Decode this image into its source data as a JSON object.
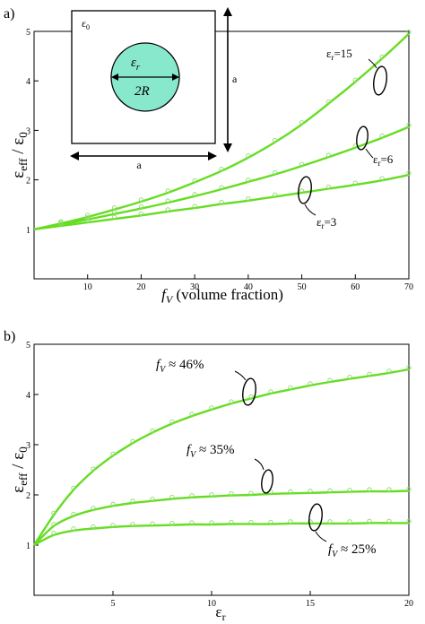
{
  "colors": {
    "curve": "#66dd22",
    "marker": "#88dd66",
    "circle_fill": "#88e8cc"
  },
  "chart_data": [
    {
      "type": "line",
      "panel_label": "a)",
      "xlabel": "f_V (volume fraction)",
      "xlabel_var": "f",
      "xlabel_sub": "V",
      "xlabel_rest": " (volume fraction)",
      "ylabel": "εeff / ε0",
      "xlim": [
        0,
        70
      ],
      "ylim": [
        0,
        5
      ],
      "xticks": [
        10,
        20,
        30,
        40,
        50,
        60,
        70
      ],
      "yticks": [
        1,
        2,
        3,
        4,
        5
      ],
      "grid": false,
      "series": [
        {
          "name": "εr=15",
          "x": [
            0,
            5,
            10,
            15,
            20,
            25,
            30,
            35,
            40,
            45,
            50,
            55,
            60,
            65,
            70
          ],
          "y": [
            1.0,
            1.12,
            1.25,
            1.4,
            1.56,
            1.74,
            1.95,
            2.18,
            2.45,
            2.76,
            3.12,
            3.54,
            3.98,
            4.45,
            4.95
          ]
        },
        {
          "name": "εr=6",
          "x": [
            0,
            5,
            10,
            15,
            20,
            25,
            30,
            35,
            40,
            45,
            50,
            55,
            60,
            65,
            70
          ],
          "y": [
            1.0,
            1.1,
            1.2,
            1.31,
            1.42,
            1.54,
            1.67,
            1.81,
            1.96,
            2.11,
            2.28,
            2.46,
            2.65,
            2.85,
            3.07
          ]
        },
        {
          "name": "εr=3",
          "x": [
            0,
            5,
            10,
            15,
            20,
            25,
            30,
            35,
            40,
            45,
            50,
            55,
            60,
            65,
            70
          ],
          "y": [
            1.0,
            1.07,
            1.14,
            1.21,
            1.28,
            1.36,
            1.43,
            1.51,
            1.58,
            1.66,
            1.74,
            1.82,
            1.9,
            1.99,
            2.1
          ]
        }
      ],
      "annotations": {
        "er15": {
          "base": "ε",
          "sub": "r",
          "rest": "=15"
        },
        "er6": {
          "base": "ε",
          "sub": "r",
          "rest": "=6"
        },
        "er3": {
          "base": "ε",
          "sub": "r",
          "rest": "=3"
        }
      },
      "inset": {
        "eps0_base": "ε",
        "eps0_sub": "0",
        "epsr_base": "ε",
        "epsr_sub": "r",
        "diameter": "2R",
        "side_label_right": "a",
        "side_label_bottom": "a"
      }
    },
    {
      "type": "line",
      "panel_label": "b)",
      "xlabel": "εr",
      "xlabel_base": "ε",
      "xlabel_sub": "r",
      "ylabel": "εeff / ε0",
      "xlim": [
        1,
        20
      ],
      "ylim": [
        0,
        5
      ],
      "xticks": [
        5,
        10,
        15,
        20
      ],
      "yticks": [
        1,
        2,
        3,
        4,
        5
      ],
      "grid": false,
      "series": [
        {
          "name": "f_V ≈ 46%",
          "x": [
            1,
            2,
            3,
            4,
            5,
            6,
            7,
            8,
            9,
            10,
            11,
            12,
            13,
            14,
            15,
            16,
            17,
            18,
            19,
            20
          ],
          "y": [
            1.0,
            1.6,
            2.1,
            2.48,
            2.78,
            3.03,
            3.24,
            3.42,
            3.57,
            3.7,
            3.82,
            3.92,
            4.02,
            4.1,
            4.18,
            4.25,
            4.31,
            4.37,
            4.43,
            4.5
          ]
        },
        {
          "name": "f_V ≈ 35%",
          "x": [
            1,
            2,
            3,
            4,
            5,
            6,
            7,
            8,
            9,
            10,
            11,
            12,
            13,
            14,
            15,
            16,
            17,
            18,
            19,
            20
          ],
          "y": [
            1.0,
            1.38,
            1.58,
            1.7,
            1.78,
            1.84,
            1.88,
            1.92,
            1.95,
            1.97,
            1.99,
            2.0,
            2.02,
            2.03,
            2.04,
            2.05,
            2.06,
            2.07,
            2.07,
            2.08
          ]
        },
        {
          "name": "f_V ≈ 25%",
          "x": [
            1,
            2,
            3,
            4,
            5,
            6,
            7,
            8,
            9,
            10,
            11,
            12,
            13,
            14,
            15,
            16,
            17,
            18,
            19,
            20
          ],
          "y": [
            1.0,
            1.2,
            1.29,
            1.33,
            1.36,
            1.38,
            1.39,
            1.4,
            1.41,
            1.41,
            1.42,
            1.42,
            1.42,
            1.43,
            1.43,
            1.43,
            1.43,
            1.44,
            1.44,
            1.44
          ]
        }
      ],
      "annotations": {
        "f46": {
          "var": "f",
          "sub": "V",
          "rest": " ≈ 46%"
        },
        "f35": {
          "var": "f",
          "sub": "V",
          "rest": " ≈ 35%"
        },
        "f25": {
          "var": "f",
          "sub": "V",
          "rest": " ≈ 25%"
        }
      }
    }
  ]
}
